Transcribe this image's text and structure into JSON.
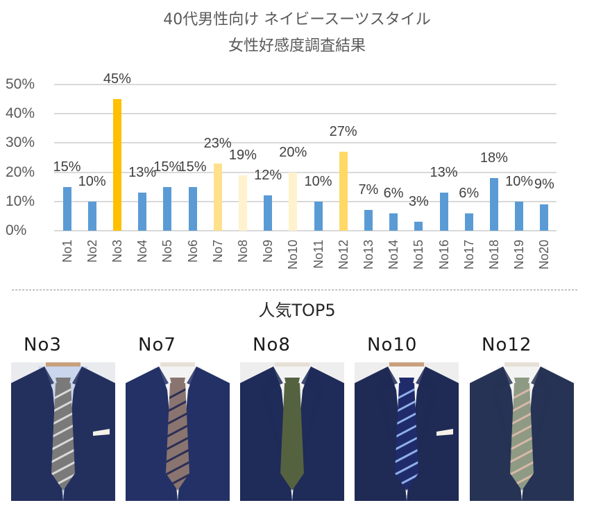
{
  "title": {
    "line1": "40代男性向け ネイビースーツスタイル",
    "line2": "女性好感度調査結果"
  },
  "chart_data": {
    "type": "bar",
    "title": "40代男性向け ネイビースーツスタイル 女性好感度調査結果",
    "xlabel": "",
    "ylabel": "",
    "ylim": [
      0,
      50
    ],
    "yticks": [
      "0%",
      "10%",
      "20%",
      "30%",
      "40%",
      "50%"
    ],
    "grid": true,
    "legend": "none",
    "categories": [
      "No1",
      "No2",
      "No3",
      "No4",
      "No5",
      "No6",
      "No7",
      "No8",
      "No9",
      "No10",
      "No11",
      "No12",
      "No13",
      "No14",
      "No15",
      "No16",
      "No17",
      "No18",
      "No19",
      "No20"
    ],
    "values": [
      15,
      10,
      45,
      13,
      15,
      15,
      23,
      19,
      12,
      20,
      10,
      27,
      7,
      6,
      3,
      13,
      6,
      18,
      10,
      9
    ],
    "data_labels": [
      "15%",
      "10%",
      "45%",
      "13%",
      "15%",
      "15%",
      "23%",
      "19%",
      "12%",
      "20%",
      "10%",
      "27%",
      "7%",
      "6%",
      "3%",
      "13%",
      "6%",
      "18%",
      "10%",
      "9%"
    ],
    "bar_colors": [
      "#5b9bd5",
      "#5b9bd5",
      "#ffc000",
      "#5b9bd5",
      "#5b9bd5",
      "#5b9bd5",
      "#ffe08c",
      "#fff2cc",
      "#5b9bd5",
      "#fff2cc",
      "#5b9bd5",
      "#ffd966",
      "#5b9bd5",
      "#5b9bd5",
      "#5b9bd5",
      "#5b9bd5",
      "#5b9bd5",
      "#5b9bd5",
      "#5b9bd5",
      "#5b9bd5"
    ]
  },
  "colors": {
    "default_bar": "#5b9bd5",
    "top1_bar": "#ffc000",
    "highlight_bar_dark": "#ffd966",
    "highlight_bar_mid": "#ffe08c",
    "highlight_bar_light": "#fff2cc",
    "gridline": "#d9d9d9",
    "text": "#595959"
  },
  "top5": {
    "title": "人気TOP5",
    "items": [
      {
        "label": "No3",
        "tie": "gray-striped",
        "shirt": "light-blue",
        "suit": "navy"
      },
      {
        "label": "No7",
        "tie": "brown-navy-striped",
        "shirt": "white",
        "suit": "navy-check"
      },
      {
        "label": "No8",
        "tie": "olive-green-solid",
        "shirt": "white",
        "suit": "navy-check"
      },
      {
        "label": "No10",
        "tie": "navy-blue-white-striped",
        "shirt": "white",
        "suit": "navy"
      },
      {
        "label": "No12",
        "tie": "sage-green-striped",
        "shirt": "white",
        "suit": "navy-pinstripe"
      }
    ]
  }
}
